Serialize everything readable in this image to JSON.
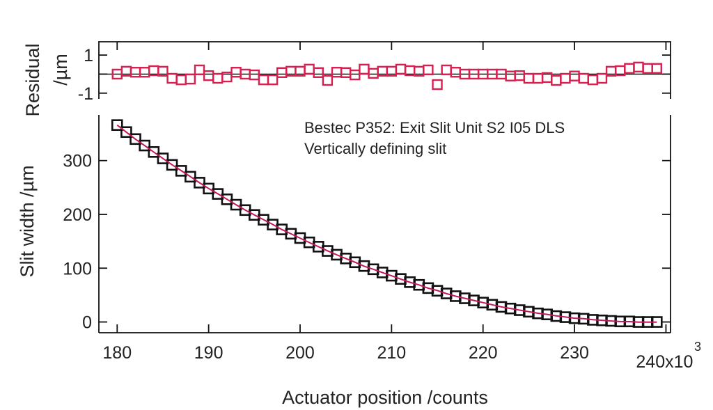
{
  "chart_data": [
    {
      "panel": "residual",
      "type": "scatter",
      "ylabel_line1": "Residual",
      "ylabel_line2": "/µm",
      "ylim": [
        -1.3,
        1.7
      ],
      "yticks": [
        1,
        0,
        -1
      ],
      "ytick_labels": [
        "1",
        "",
        "-1"
      ],
      "xlim": [
        178,
        240.5
      ],
      "marker": "open-square",
      "marker_color": "#d6204f",
      "zero_line": true,
      "x": [
        180,
        181,
        182,
        183,
        184,
        185,
        186,
        187,
        188,
        189,
        190,
        191,
        192,
        193,
        194,
        195,
        196,
        197,
        198,
        199,
        200,
        201,
        202,
        203,
        204,
        205,
        206,
        207,
        208,
        209,
        210,
        211,
        212,
        213,
        214,
        215,
        216,
        217,
        218,
        219,
        220,
        221,
        222,
        223,
        224,
        225,
        226,
        227,
        228,
        229,
        230,
        231,
        232,
        233,
        234,
        235,
        236,
        237,
        238,
        239
      ],
      "values": [
        0.0,
        0.15,
        0.1,
        0.1,
        0.18,
        0.15,
        -0.22,
        -0.3,
        -0.26,
        0.22,
        -0.08,
        -0.22,
        -0.15,
        0.1,
        0.0,
        -0.04,
        -0.3,
        -0.3,
        0.08,
        0.15,
        0.15,
        0.26,
        0.08,
        -0.33,
        0.1,
        0.08,
        -0.04,
        0.26,
        0.04,
        0.15,
        0.15,
        0.26,
        0.18,
        0.15,
        0.22,
        -0.55,
        0.22,
        0.1,
        0.0,
        0.0,
        0.0,
        0.0,
        0.0,
        -0.1,
        -0.08,
        -0.22,
        -0.22,
        -0.18,
        -0.33,
        -0.22,
        -0.1,
        -0.22,
        -0.3,
        -0.22,
        0.15,
        0.18,
        0.3,
        0.37,
        0.3,
        0.3
      ]
    },
    {
      "panel": "main",
      "type": "scatter",
      "title": "",
      "annotations": [
        "Bestec P352: Exit Slit Unit S2 I05 DLS",
        "Vertically defining slit"
      ],
      "xlabel": "Actuator position /counts",
      "ylabel": "Slit width /µm",
      "xlim": [
        178,
        240.5
      ],
      "ylim": [
        -20,
        385
      ],
      "xticks": [
        180,
        190,
        200,
        210,
        220,
        230,
        240
      ],
      "xtick_labels": [
        "180",
        "190",
        "200",
        "210",
        "220",
        "230",
        "240x10"
      ],
      "x_exponent_label": "3",
      "yticks": [
        0,
        100,
        200,
        300
      ],
      "ytick_labels": [
        "0",
        "100",
        "200",
        "300"
      ],
      "marker": "open-square",
      "marker_color": "#111111",
      "fit_line_color": "#c2185b",
      "grid": false,
      "legend": "none",
      "x": [
        180,
        181,
        182,
        183,
        184,
        185,
        186,
        187,
        188,
        189,
        190,
        191,
        192,
        193,
        194,
        195,
        196,
        197,
        198,
        199,
        200,
        201,
        202,
        203,
        204,
        205,
        206,
        207,
        208,
        209,
        210,
        211,
        212,
        213,
        214,
        215,
        216,
        217,
        218,
        219,
        220,
        221,
        222,
        223,
        224,
        225,
        226,
        227,
        228,
        229,
        230,
        231,
        232,
        233,
        234,
        235,
        236,
        237,
        238,
        239
      ],
      "values": [
        366,
        353,
        340,
        328,
        316,
        304,
        292,
        281,
        270,
        259,
        248,
        238,
        228,
        218,
        208,
        199,
        190,
        181,
        172,
        164,
        156,
        148,
        140,
        132,
        125,
        118,
        111,
        104,
        98,
        92,
        86,
        80,
        74,
        69,
        63,
        58,
        53,
        48,
        44,
        40,
        36,
        32,
        28,
        25,
        22,
        19,
        16,
        14,
        11,
        9,
        7,
        6,
        4,
        3,
        2,
        1,
        1,
        0,
        0,
        0
      ]
    }
  ]
}
